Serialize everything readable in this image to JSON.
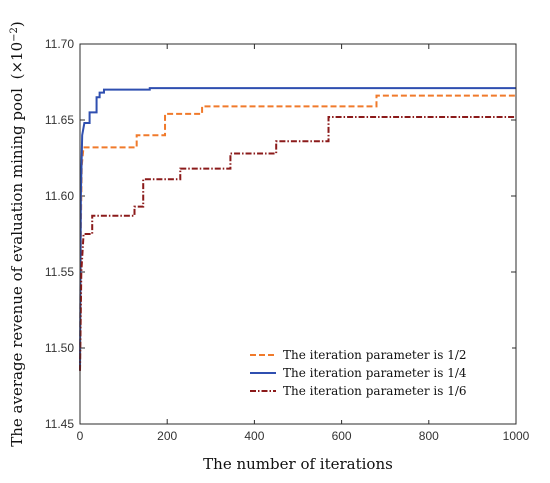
{
  "chart_data": {
    "type": "line",
    "xlabel": "The number of iterations",
    "ylabel": "The average revenue of evaluation mining pool",
    "ylabel_unit_base": "(×10",
    "ylabel_unit_exp": "−2",
    "ylabel_unit_close": ")",
    "xlim": [
      0,
      1000
    ],
    "ylim": [
      11.45,
      11.7
    ],
    "xticks": [
      0,
      200,
      400,
      600,
      800,
      1000
    ],
    "xtick_labels": [
      "0",
      "200",
      "400",
      "600",
      "800",
      "1000"
    ],
    "yticks": [
      11.45,
      11.5,
      11.55,
      11.6,
      11.65,
      11.7
    ],
    "ytick_labels": [
      "11.45",
      "11.50",
      "11.55",
      "11.60",
      "11.65",
      "11.70"
    ],
    "legend_position": "bottom-right",
    "series": [
      {
        "name": "The iteration parameter is 1/2",
        "color": "#F07A2B",
        "dash": "dashed",
        "x": [
          0,
          2,
          4,
          8,
          130,
          130,
          195,
          195,
          280,
          280,
          680,
          680,
          1000
        ],
        "y": [
          11.49,
          11.58,
          11.62,
          11.632,
          11.632,
          11.64,
          11.64,
          11.654,
          11.654,
          11.659,
          11.659,
          11.666,
          11.666
        ]
      },
      {
        "name": "The iteration parameter is 1/4",
        "color": "#2F4FB0",
        "dash": "solid",
        "x": [
          0,
          2,
          5,
          10,
          10,
          22,
          22,
          38,
          38,
          45,
          45,
          55,
          55,
          160,
          160,
          1000
        ],
        "y": [
          11.485,
          11.6,
          11.64,
          11.648,
          11.648,
          11.648,
          11.655,
          11.655,
          11.665,
          11.665,
          11.668,
          11.668,
          11.67,
          11.67,
          11.671,
          11.671
        ]
      },
      {
        "name": "The iteration parameter is 1/6",
        "color": "#8B1A1A",
        "dash": "dashdot",
        "x": [
          0,
          3,
          8,
          8,
          28,
          28,
          125,
          125,
          145,
          145,
          230,
          230,
          345,
          345,
          450,
          450,
          570,
          570,
          1000
        ],
        "y": [
          11.485,
          11.55,
          11.574,
          11.575,
          11.575,
          11.587,
          11.587,
          11.593,
          11.593,
          11.611,
          11.611,
          11.618,
          11.618,
          11.628,
          11.628,
          11.636,
          11.636,
          11.652,
          11.652
        ]
      }
    ]
  }
}
